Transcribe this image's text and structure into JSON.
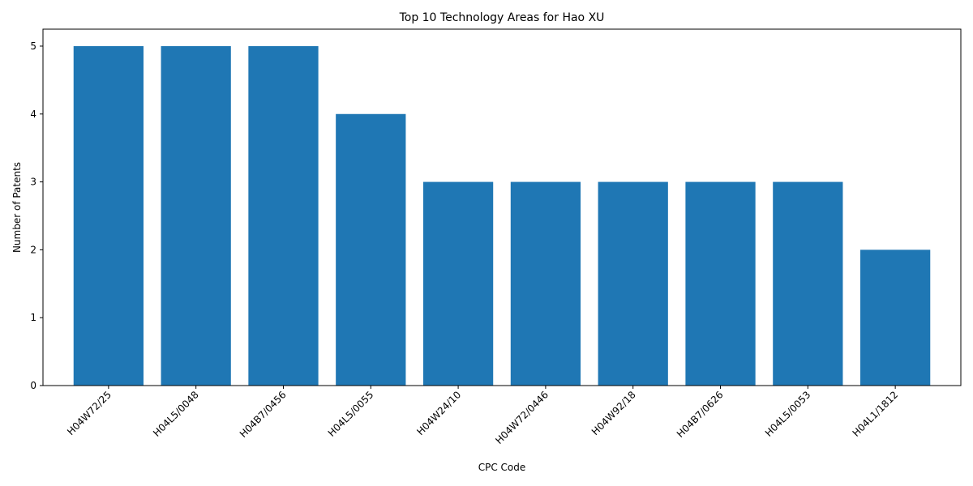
{
  "chart_data": {
    "type": "bar",
    "title": "Top 10 Technology Areas for Hao XU",
    "xlabel": "CPC Code",
    "ylabel": "Number of Patents",
    "categories": [
      "H04W72/25",
      "H04L5/0048",
      "H04B7/0456",
      "H04L5/0055",
      "H04W24/10",
      "H04W72/0446",
      "H04W92/18",
      "H04B7/0626",
      "H04L5/0053",
      "H04L1/1812"
    ],
    "values": [
      5,
      5,
      5,
      4,
      3,
      3,
      3,
      3,
      3,
      2
    ],
    "ylim": [
      0,
      5.25
    ],
    "yticks": [
      0,
      1,
      2,
      3,
      4,
      5
    ],
    "bar_color": "#1f77b4",
    "grid": false,
    "legend": "none",
    "xtick_rotation": 45
  }
}
